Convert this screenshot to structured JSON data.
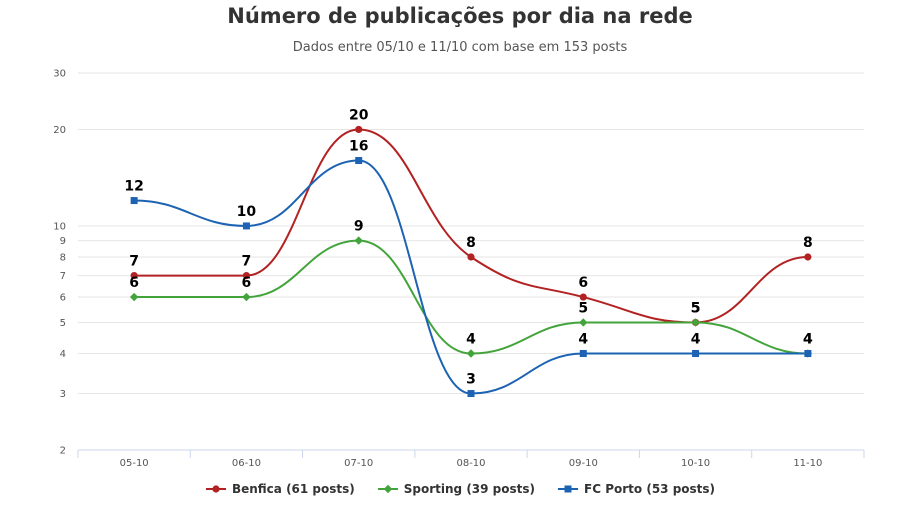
{
  "chart_data": {
    "type": "line",
    "title": "Número de publicações por dia na rede",
    "subtitle": "Dados entre 05/10 e 11/10 com base em 153 posts",
    "categories": [
      "05-10",
      "06-10",
      "07-10",
      "08-10",
      "09-10",
      "10-10",
      "11-10"
    ],
    "yscale": "log",
    "ylim": [
      2,
      30
    ],
    "yticks": [
      2,
      3,
      4,
      5,
      6,
      7,
      8,
      9,
      10,
      20,
      30
    ],
    "grid": true,
    "legend": "bottom-center",
    "data_labels": true,
    "series": [
      {
        "name": "Benfica (61 posts)",
        "values": [
          7,
          7,
          20,
          8,
          6,
          5,
          8
        ],
        "color": "#b22222",
        "marker": "circle"
      },
      {
        "name": "Sporting (39 posts)",
        "values": [
          6,
          6,
          9,
          4,
          5,
          5,
          4
        ],
        "color": "#43a43c",
        "marker": "diamond"
      },
      {
        "name": "FC Porto (53 posts)",
        "values": [
          12,
          10,
          16,
          3,
          4,
          4,
          4
        ],
        "color": "#1d63b3",
        "marker": "square"
      }
    ]
  }
}
